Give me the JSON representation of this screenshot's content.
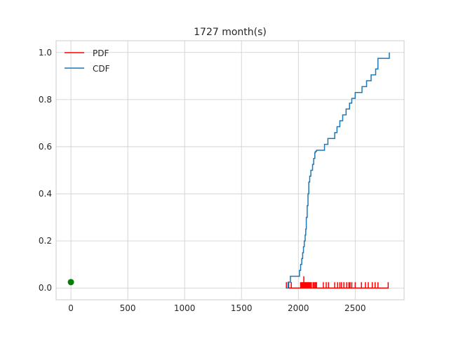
{
  "chart_data": {
    "type": "line",
    "title": "1727 month(s)",
    "xlabel": "",
    "ylabel": "",
    "xlim": [
      -130,
      2930
    ],
    "ylim": [
      -0.05,
      1.05
    ],
    "x_ticks": [
      0,
      500,
      1000,
      1500,
      2000,
      2500
    ],
    "x_tick_labels": [
      "0",
      "500",
      "1000",
      "1500",
      "2000",
      "2500"
    ],
    "y_ticks": [
      0.0,
      0.2,
      0.4,
      0.6,
      0.8,
      1.0
    ],
    "y_tick_labels": [
      "0.0",
      "0.2",
      "0.4",
      "0.6",
      "0.8",
      "1.0"
    ],
    "grid": true,
    "legend": "upper-left",
    "colors": {
      "pdf": "#ff0000",
      "cdf": "#1f77b4",
      "marker": "#008000",
      "grid": "#cccccc",
      "spine": "#cccccc",
      "text": "#262626"
    },
    "series": [
      {
        "name": "PDF",
        "kind": "spikes",
        "baseline": 0,
        "x": [
          1895,
          1915,
          1938,
          2020,
          2028,
          2035,
          2042,
          2048,
          2055,
          2062,
          2068,
          2075,
          2082,
          2090,
          2098,
          2105,
          2115,
          2130,
          2140,
          2150,
          2160,
          2220,
          2245,
          2265,
          2320,
          2345,
          2365,
          2380,
          2400,
          2425,
          2445,
          2455,
          2470,
          2500,
          2555,
          2590,
          2615,
          2650,
          2675,
          2700,
          2790
        ],
        "y": [
          0.025,
          0.025,
          0.025,
          0.025,
          0.025,
          0.025,
          0.025,
          0.05,
          0.025,
          0.025,
          0.025,
          0.025,
          0.025,
          0.025,
          0.025,
          0.025,
          0.025,
          0.025,
          0.025,
          0.025,
          0.025,
          0.025,
          0.025,
          0.025,
          0.025,
          0.025,
          0.025,
          0.025,
          0.025,
          0.025,
          0.025,
          0.025,
          0.025,
          0.025,
          0.025,
          0.025,
          0.025,
          0.025,
          0.025,
          0.025,
          0.025
        ]
      },
      {
        "name": "CDF",
        "kind": "step",
        "x": [
          1895,
          1910,
          1930,
          2010,
          2020,
          2030,
          2038,
          2045,
          2052,
          2060,
          2065,
          2070,
          2078,
          2085,
          2092,
          2100,
          2110,
          2125,
          2135,
          2145,
          2150,
          2160,
          2165,
          2230,
          2260,
          2320,
          2340,
          2365,
          2390,
          2420,
          2450,
          2470,
          2500,
          2560,
          2600,
          2640,
          2680,
          2700,
          2790,
          2800
        ],
        "y": [
          0.0,
          0.025,
          0.05,
          0.075,
          0.1,
          0.125,
          0.15,
          0.175,
          0.2,
          0.225,
          0.25,
          0.3,
          0.35,
          0.4,
          0.45,
          0.475,
          0.5,
          0.525,
          0.55,
          0.575,
          0.58,
          0.585,
          0.585,
          0.61,
          0.635,
          0.66,
          0.685,
          0.71,
          0.735,
          0.76,
          0.785,
          0.805,
          0.83,
          0.855,
          0.88,
          0.905,
          0.93,
          0.975,
          0.975,
          1.0
        ]
      },
      {
        "name": "",
        "kind": "marker",
        "x": [
          0
        ],
        "y": [
          0.025
        ]
      }
    ]
  }
}
